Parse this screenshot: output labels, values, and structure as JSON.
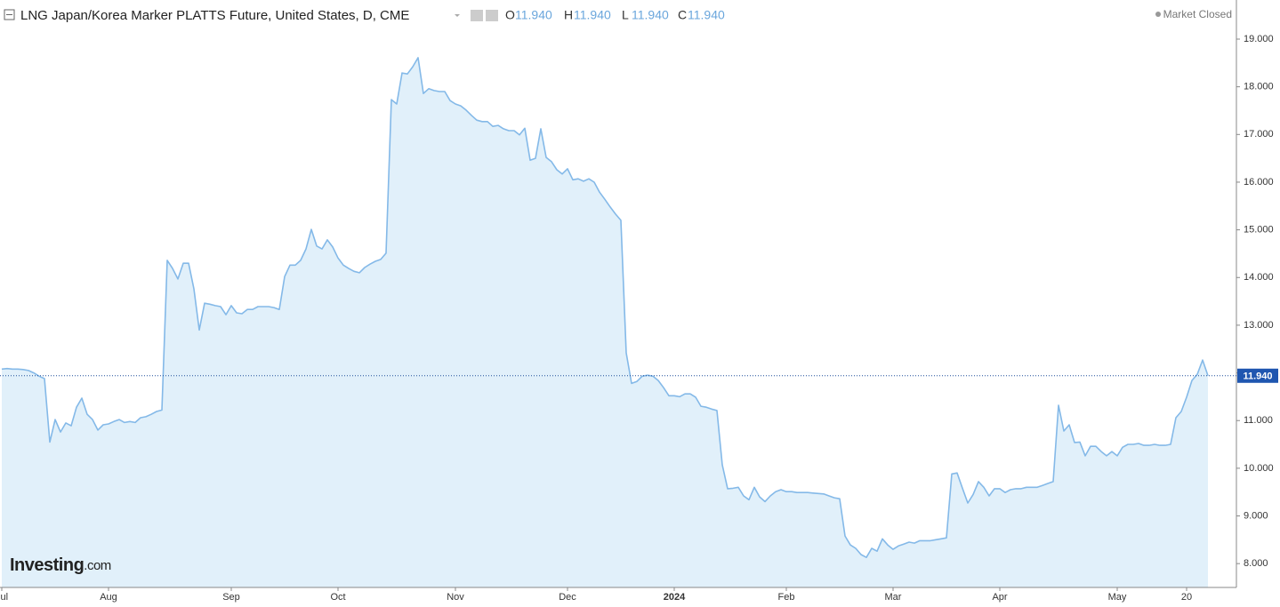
{
  "chart_data": {
    "type": "area",
    "title": "LNG Japan/Korea Marker PLATTS Future, United States, D, CME",
    "status": "Market Closed",
    "ohlc": {
      "names": [
        "O",
        "H",
        "L",
        "C"
      ],
      "values": [
        11.94,
        11.94,
        11.94,
        11.94
      ],
      "value_labels": [
        "11.940",
        "11.940",
        "11.940",
        "11.940"
      ]
    },
    "watermark": [
      "Investing",
      ".com"
    ],
    "color": "#84b9e8",
    "fill_color": "#e1f0fa",
    "last": {
      "value": 11.94,
      "label": "11.940"
    },
    "ylim": [
      7.5,
      19.82
    ],
    "yticks": [
      {
        "value": 8,
        "label": "8.000"
      },
      {
        "value": 9,
        "label": "9.000"
      },
      {
        "value": 10,
        "label": "10.000"
      },
      {
        "value": 11,
        "label": "11.000"
      },
      {
        "value": 12,
        "label": "12.000"
      },
      {
        "value": 13,
        "label": "13.000"
      },
      {
        "value": 14,
        "label": "14.000"
      },
      {
        "value": 15,
        "label": "15.000"
      },
      {
        "value": 16,
        "label": "16.000"
      },
      {
        "value": 17,
        "label": "17.000"
      },
      {
        "value": 18,
        "label": "18.000"
      },
      {
        "value": 19,
        "label": "19.000"
      }
    ],
    "categories": [
      "Jul",
      null,
      null,
      null,
      null,
      null,
      null,
      null,
      null,
      null,
      null,
      null,
      null,
      null,
      null,
      null,
      null,
      null,
      null,
      null,
      "Aug",
      null,
      null,
      null,
      null,
      null,
      null,
      null,
      null,
      null,
      null,
      null,
      null,
      null,
      null,
      null,
      null,
      null,
      null,
      null,
      null,
      null,
      null,
      "Sep",
      null,
      null,
      null,
      null,
      null,
      null,
      null,
      null,
      null,
      null,
      null,
      null,
      null,
      null,
      null,
      null,
      null,
      null,
      null,
      "Oct",
      null,
      null,
      null,
      null,
      null,
      null,
      null,
      null,
      null,
      null,
      null,
      null,
      null,
      null,
      null,
      null,
      null,
      null,
      null,
      null,
      null,
      "Nov",
      null,
      null,
      null,
      null,
      null,
      null,
      null,
      null,
      null,
      null,
      null,
      null,
      null,
      null,
      null,
      null,
      null,
      null,
      null,
      null,
      "Dec",
      null,
      null,
      null,
      null,
      null,
      null,
      null,
      null,
      null,
      null,
      null,
      null,
      null,
      null,
      null,
      null,
      null,
      null,
      null,
      "2024",
      null,
      null,
      null,
      null,
      null,
      null,
      null,
      null,
      null,
      null,
      null,
      null,
      null,
      null,
      null,
      null,
      null,
      null,
      null,
      null,
      "Feb",
      null,
      null,
      null,
      null,
      null,
      null,
      null,
      null,
      null,
      null,
      null,
      null,
      null,
      null,
      null,
      null,
      null,
      null,
      null,
      "Mar",
      null,
      null,
      null,
      null,
      null,
      null,
      null,
      null,
      null,
      null,
      null,
      null,
      null,
      null,
      null,
      null,
      null,
      null,
      null,
      "Apr",
      null,
      null,
      null,
      null,
      null,
      null,
      null,
      null,
      null,
      null,
      null,
      null,
      null,
      null,
      null,
      null,
      null,
      null,
      null,
      null,
      null,
      "May",
      null,
      null,
      null,
      null,
      null,
      null,
      null,
      null,
      null,
      null,
      null,
      null,
      "20",
      null,
      null,
      null,
      null
    ],
    "values": [
      12.08,
      12.09,
      12.08,
      12.08,
      12.07,
      12.05,
      12.0,
      11.93,
      11.88,
      10.55,
      11.02,
      10.76,
      10.95,
      10.89,
      11.28,
      11.47,
      11.13,
      11.02,
      10.8,
      10.91,
      10.93,
      10.98,
      11.02,
      10.96,
      10.98,
      10.96,
      11.06,
      11.08,
      11.13,
      11.19,
      11.22,
      14.36,
      14.19,
      13.97,
      14.3,
      14.3,
      13.76,
      12.9,
      13.46,
      13.44,
      13.41,
      13.39,
      13.22,
      13.41,
      13.26,
      13.24,
      13.33,
      13.33,
      13.39,
      13.39,
      13.39,
      13.37,
      13.33,
      14.02,
      14.26,
      14.26,
      14.36,
      14.6,
      15.01,
      14.66,
      14.6,
      14.79,
      14.64,
      14.41,
      14.26,
      14.19,
      14.13,
      14.1,
      14.21,
      14.28,
      14.34,
      14.38,
      14.51,
      17.73,
      17.64,
      18.29,
      18.27,
      18.42,
      18.61,
      17.86,
      17.96,
      17.92,
      17.9,
      17.9,
      17.71,
      17.64,
      17.6,
      17.51,
      17.4,
      17.3,
      17.27,
      17.27,
      17.17,
      17.19,
      17.12,
      17.08,
      17.08,
      16.99,
      17.13,
      16.46,
      16.5,
      17.12,
      16.52,
      16.43,
      16.26,
      16.17,
      16.28,
      16.05,
      16.07,
      16.02,
      16.07,
      16.0,
      15.79,
      15.64,
      15.48,
      15.33,
      15.2,
      12.42,
      11.78,
      11.82,
      11.93,
      11.95,
      11.93,
      11.84,
      11.69,
      11.52,
      11.52,
      11.5,
      11.56,
      11.56,
      11.49,
      11.3,
      11.28,
      11.24,
      11.21,
      10.07,
      9.57,
      9.58,
      9.6,
      9.42,
      9.34,
      9.6,
      9.4,
      9.3,
      9.42,
      9.51,
      9.55,
      9.51,
      9.51,
      9.49,
      9.49,
      9.49,
      9.48,
      9.47,
      9.46,
      9.42,
      9.38,
      9.36,
      8.58,
      8.39,
      8.32,
      8.19,
      8.13,
      8.32,
      8.26,
      8.52,
      8.39,
      8.3,
      8.37,
      8.41,
      8.45,
      8.43,
      8.48,
      8.48,
      8.48,
      8.5,
      8.52,
      8.54,
      9.88,
      9.9,
      9.58,
      9.27,
      9.45,
      9.72,
      9.6,
      9.42,
      9.57,
      9.57,
      9.49,
      9.55,
      9.57,
      9.57,
      9.6,
      9.6,
      9.6,
      9.64,
      9.68,
      9.72,
      11.32,
      10.78,
      10.91,
      10.54,
      10.55,
      10.26,
      10.46,
      10.46,
      10.35,
      10.26,
      10.35,
      10.26,
      10.44,
      10.5,
      10.5,
      10.52,
      10.48,
      10.48,
      10.5,
      10.48,
      10.48,
      10.5,
      11.06,
      11.19,
      11.49,
      11.84,
      11.97,
      12.27,
      11.94
    ]
  }
}
